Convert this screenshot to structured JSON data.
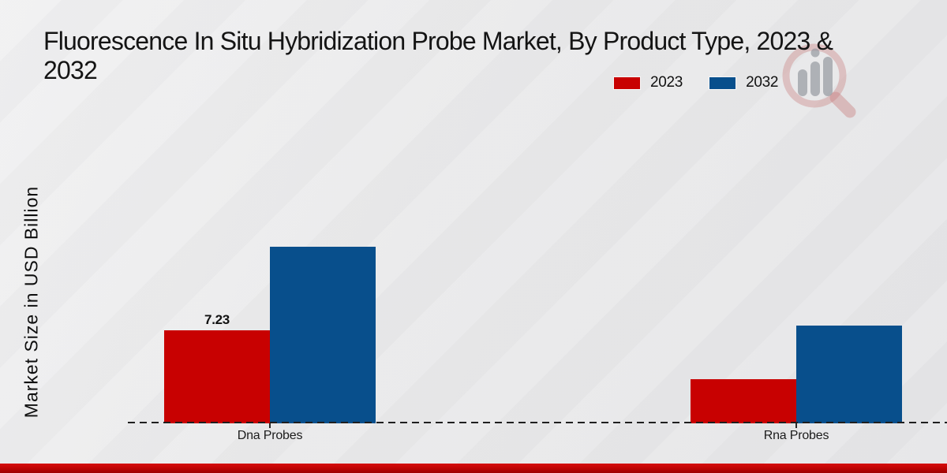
{
  "header": {
    "title_line1": "Fluorescence In Situ Hybridization Probe Market, By Product Type, 2023 &",
    "title_line2": "2032"
  },
  "watermark": {
    "icon": "magnifier-bar-chart-logo"
  },
  "footer": {
    "strip_color": "#c30404"
  },
  "chart_data": {
    "type": "bar",
    "title": "Fluorescence In Situ Hybridization Probe Market, By Product Type, 2023 & 2032",
    "ylabel": "Market Size in USD Billion",
    "xlabel": "",
    "categories": [
      "Dna Probes",
      "Rna Probes"
    ],
    "series": [
      {
        "name": "2023",
        "color": "#c80101",
        "values": [
          7.23,
          3.45
        ]
      },
      {
        "name": "2032",
        "color": "#084f8c",
        "values": [
          13.7,
          7.6
        ]
      }
    ],
    "value_labels": [
      {
        "series": 0,
        "category": 0,
        "text": "7.23"
      }
    ],
    "ylim": [
      0,
      15
    ],
    "grid": false,
    "axis_style": "dashed-baseline",
    "legend_position": "top-right",
    "background_color": "#e9e9ea"
  }
}
